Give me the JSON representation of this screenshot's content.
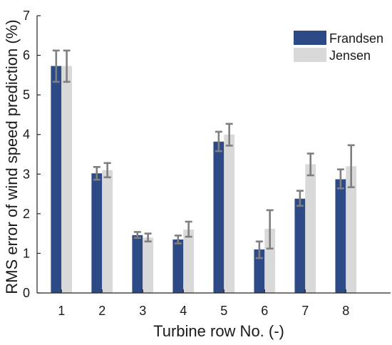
{
  "chart_data": {
    "type": "bar",
    "xlabel": "Turbine row No. (-)",
    "ylabel": "RMS error of wind speed prediction (%)",
    "categories": [
      "1",
      "2",
      "3",
      "4",
      "5",
      "6",
      "7",
      "8"
    ],
    "xlim": [
      0.4,
      9.1
    ],
    "ylim": [
      0,
      7
    ],
    "yticks": [
      0,
      1,
      2,
      3,
      4,
      5,
      6,
      7
    ],
    "grid": false,
    "legend_position": "top-right",
    "series": [
      {
        "name": "Frandsen",
        "color": "#2e4a86",
        "values": [
          5.73,
          3.02,
          1.46,
          1.35,
          3.82,
          1.1,
          2.38,
          2.87
        ],
        "error_low": [
          5.33,
          2.86,
          1.39,
          1.25,
          3.58,
          0.88,
          2.2,
          2.64
        ],
        "error_high": [
          6.12,
          3.18,
          1.54,
          1.45,
          4.07,
          1.3,
          2.58,
          3.12
        ]
      },
      {
        "name": "Jensen",
        "color": "#d9d9d9",
        "values": [
          5.73,
          3.1,
          1.4,
          1.6,
          4.0,
          1.62,
          3.25,
          3.2
        ],
        "error_low": [
          5.33,
          2.92,
          1.3,
          1.42,
          3.72,
          1.12,
          2.97,
          2.67
        ],
        "error_high": [
          6.12,
          3.28,
          1.5,
          1.8,
          4.27,
          2.09,
          3.52,
          3.73
        ]
      }
    ],
    "errorbar_color": "#7f7f7f"
  }
}
